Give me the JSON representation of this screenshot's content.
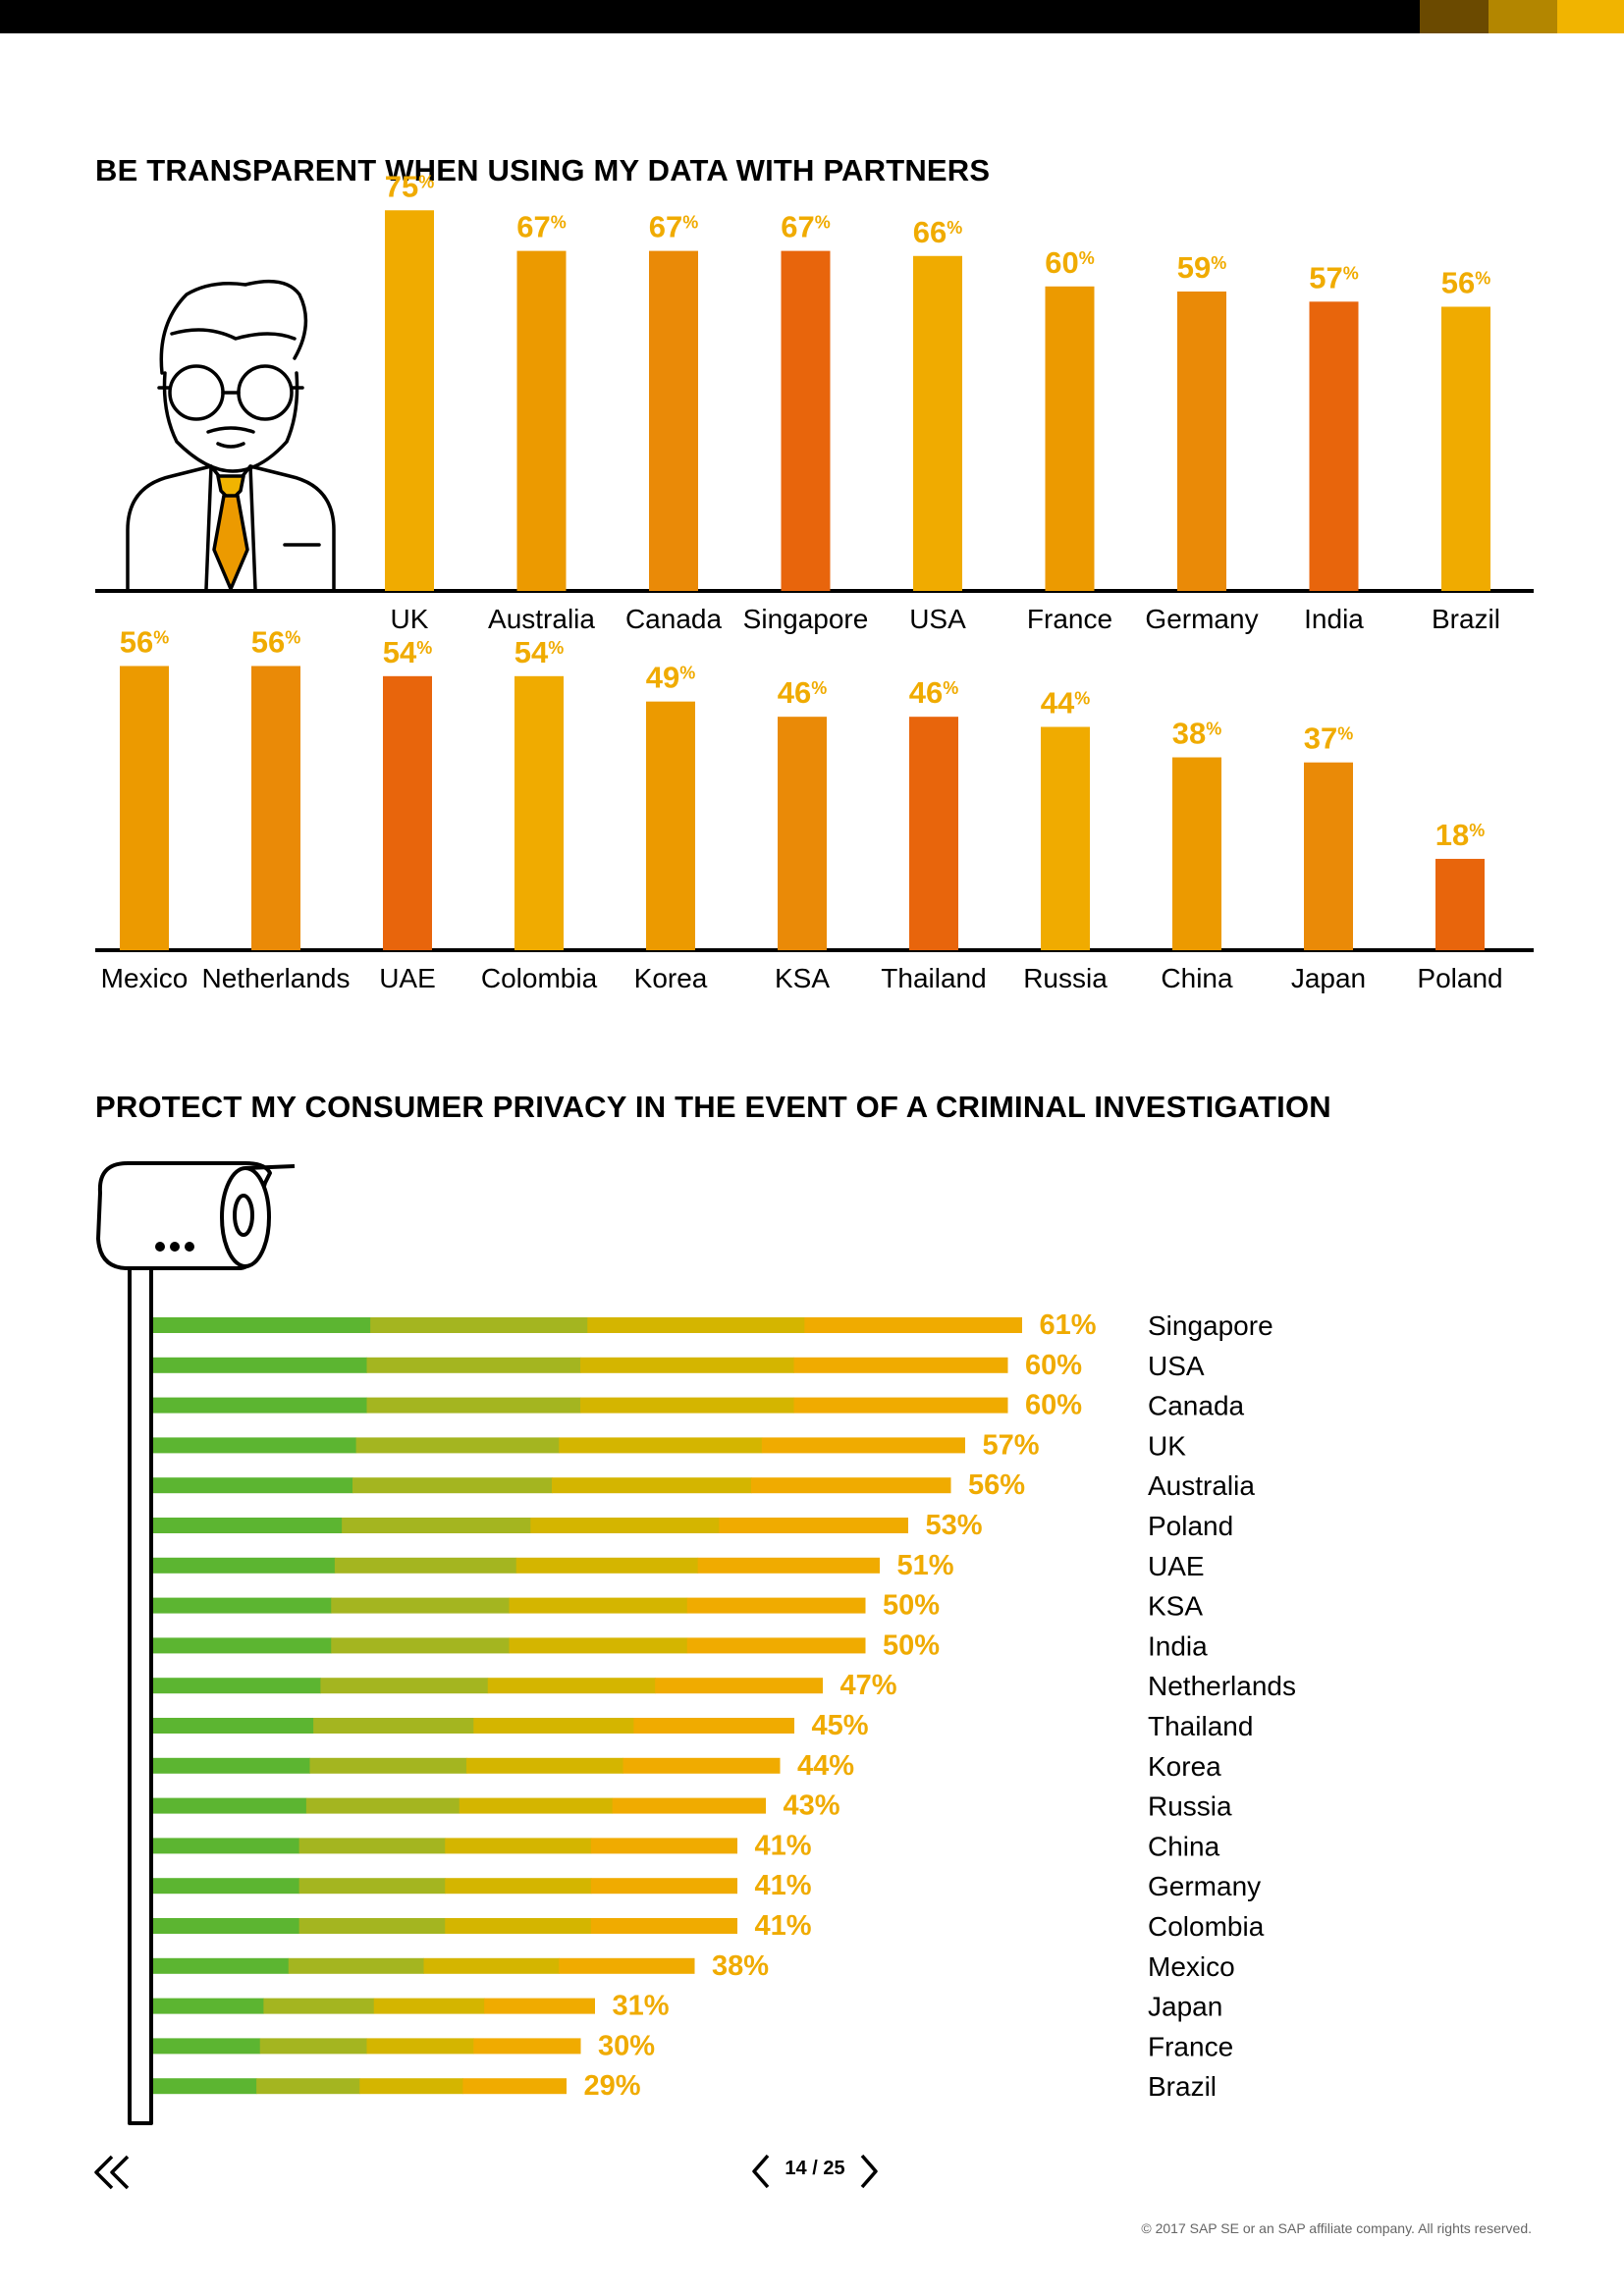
{
  "palette": {
    "top_swatches": [
      "#6b4a00",
      "#b38600",
      "#f1b400"
    ],
    "vbar_colors": [
      "#f0ab00",
      "#ec9a00",
      "#ea8a07",
      "#e8650c"
    ],
    "hbar_segments": [
      "#5cb531",
      "#a4b520",
      "#d4b500",
      "#f0ab00"
    ],
    "label_color": "#f0ab00"
  },
  "section1": {
    "title": "BE TRANSPARENT WHEN USING MY DATA WITH PARTNERS",
    "icon": "bearded-man-with-glasses-icon"
  },
  "section2": {
    "title": "PROTECT MY CONSUMER PRIVACY IN THE EVENT OF A CRIMINAL INVESTIGATION",
    "icon": "security-camera-icon"
  },
  "chart_data": [
    {
      "type": "bar",
      "orientation": "vertical",
      "unit": "%",
      "categories": [
        "UK",
        "Australia",
        "Canada",
        "Singapore",
        "USA",
        "France",
        "Germany",
        "India",
        "Brazil"
      ],
      "values": [
        75,
        67,
        67,
        67,
        66,
        60,
        59,
        57,
        56
      ],
      "colors": [
        "#f0ab00",
        "#ec9a00",
        "#ea8a07",
        "#e8650c",
        "#f0ab00",
        "#ec9a00",
        "#ea8a07",
        "#e8650c",
        "#f0ab00"
      ]
    },
    {
      "type": "bar",
      "orientation": "vertical",
      "unit": "%",
      "categories": [
        "Mexico",
        "Netherlands",
        "UAE",
        "Colombia",
        "Korea",
        "KSA",
        "Thailand",
        "Russia",
        "China",
        "Japan",
        "Poland"
      ],
      "values": [
        56,
        56,
        54,
        54,
        49,
        46,
        46,
        44,
        38,
        37,
        18
      ],
      "colors": [
        "#ec9a00",
        "#ea8a07",
        "#e8650c",
        "#f0ab00",
        "#ec9a00",
        "#ea8a07",
        "#e8650c",
        "#f0ab00",
        "#ec9a00",
        "#ea8a07",
        "#e8650c"
      ]
    },
    {
      "type": "bar",
      "orientation": "horizontal",
      "unit": "%",
      "categories": [
        "Singapore",
        "USA",
        "Canada",
        "UK",
        "Australia",
        "Poland",
        "UAE",
        "KSA",
        "India",
        "Netherlands",
        "Thailand",
        "Korea",
        "Russia",
        "China",
        "Germany",
        "Colombia",
        "Mexico",
        "Japan",
        "France",
        "Brazil"
      ],
      "values": [
        61,
        60,
        60,
        57,
        56,
        53,
        51,
        50,
        50,
        47,
        45,
        44,
        43,
        41,
        41,
        41,
        38,
        31,
        30,
        29
      ]
    }
  ],
  "navigation": {
    "first_icon": "double-chevron-left-icon",
    "prev_icon": "chevron-left-icon",
    "next_icon": "chevron-right-icon",
    "page": "14 / 25"
  },
  "footer": {
    "copyright": "© 2017 SAP SE or an SAP affiliate company. All rights reserved."
  }
}
